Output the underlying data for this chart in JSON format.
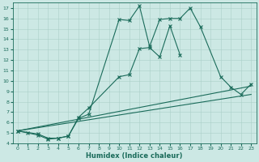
{
  "xlabel": "Humidex (Indice chaleur)",
  "bg_color": "#cce8e4",
  "grid_color": "#aacfc9",
  "line_color": "#1a6b5a",
  "xlim": [
    -0.5,
    23.5
  ],
  "ylim": [
    4,
    17.5
  ],
  "xticks": [
    0,
    1,
    2,
    3,
    4,
    5,
    6,
    7,
    8,
    9,
    10,
    11,
    12,
    13,
    14,
    15,
    16,
    17,
    18,
    19,
    20,
    21,
    22,
    23
  ],
  "yticks": [
    4,
    5,
    6,
    7,
    8,
    9,
    10,
    11,
    12,
    13,
    14,
    15,
    16,
    17
  ],
  "line1_x": [
    0,
    1,
    2,
    3,
    4,
    5,
    6,
    7,
    10,
    11,
    12,
    13,
    14,
    15,
    16,
    17,
    18,
    21
  ],
  "line1_y": [
    5.2,
    5.0,
    4.8,
    4.4,
    4.5,
    4.7,
    6.5,
    7.4,
    10.4,
    10.6,
    13.1,
    13.2,
    12.3,
    15.3,
    12.5,
    null,
    null,
    null
  ],
  "line2_x": [
    0,
    2,
    3,
    4,
    5,
    6,
    7,
    10,
    11,
    12,
    13,
    14,
    15,
    16,
    17,
    18,
    20,
    21,
    22,
    23
  ],
  "line2_y": [
    5.2,
    4.9,
    4.5,
    4.5,
    4.7,
    6.4,
    6.8,
    15.9,
    15.8,
    17.2,
    13.3,
    15.9,
    16.0,
    16.0,
    17.0,
    15.2,
    10.4,
    9.4,
    8.7,
    9.7
  ],
  "line3_x": [
    0,
    23
  ],
  "line3_y": [
    5.2,
    9.5
  ],
  "line4_x": [
    0,
    23
  ],
  "line4_y": [
    5.2,
    8.7
  ]
}
